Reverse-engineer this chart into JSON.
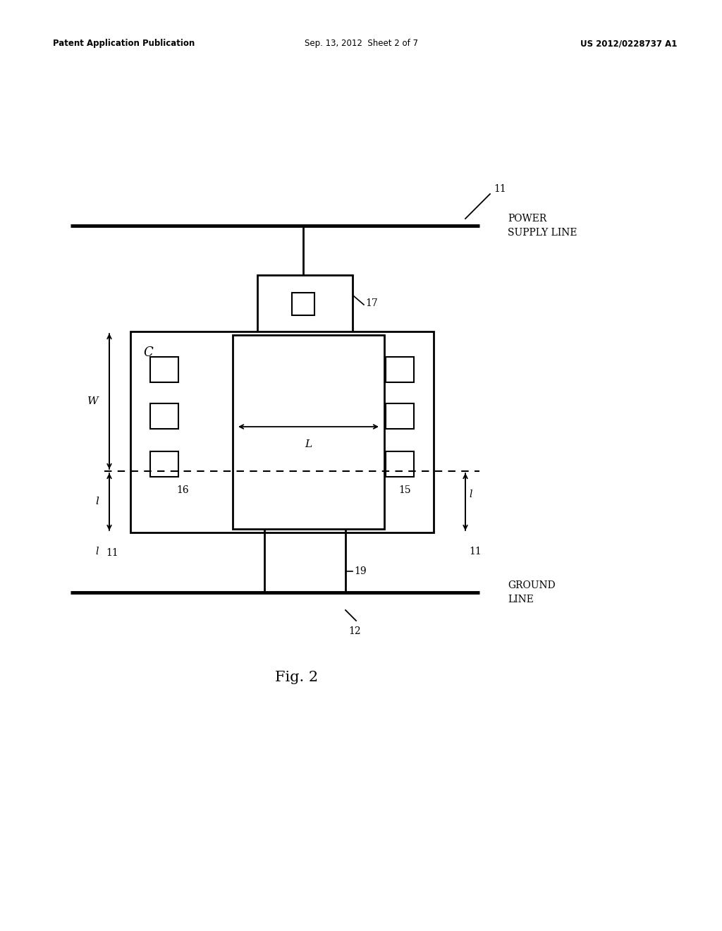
{
  "bg_color": "#ffffff",
  "lc": "#000000",
  "header_left": "Patent Application Publication",
  "header_mid": "Sep. 13, 2012  Sheet 2 of 7",
  "header_right": "US 2012/0228737 A1",
  "fig_label": "Fig. 2",
  "power_line_label": "POWER\nSUPPLY LINE",
  "ground_line_label": "GROUND\nLINE",
  "label_11": "11",
  "label_12": "12",
  "label_C": "C",
  "label_W": "W",
  "label_l": "l",
  "label_L": "L",
  "label_15": "15",
  "label_16": "16",
  "label_17": "17",
  "label_19": "19"
}
